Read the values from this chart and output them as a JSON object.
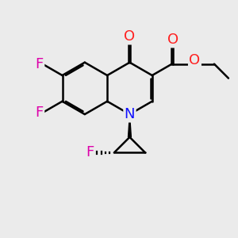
{
  "bg_color": "#ebebeb",
  "bond_color": "#000000",
  "bond_lw": 1.8,
  "atom_colors": {
    "O": "#ff2020",
    "N": "#1010ff",
    "F": "#dd00aa"
  },
  "font_size": 13,
  "font_size_small": 10
}
